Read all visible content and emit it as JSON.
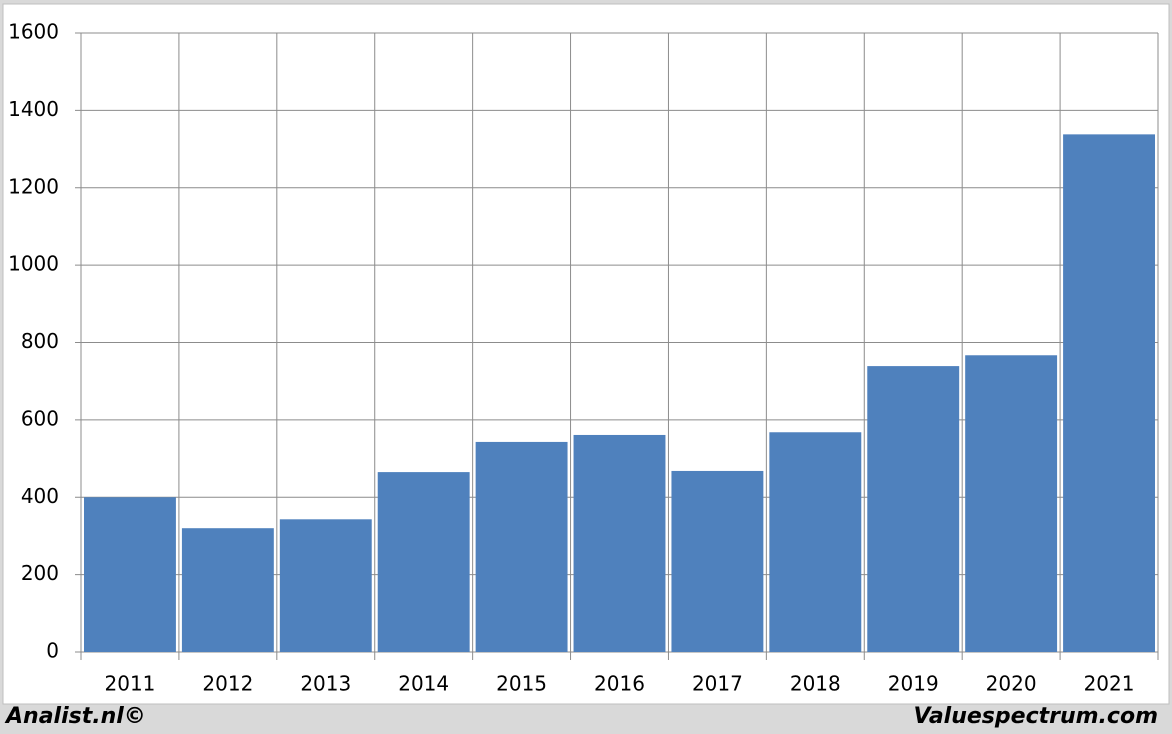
{
  "chart_data": {
    "type": "bar",
    "categories": [
      "2011",
      "2012",
      "2013",
      "2014",
      "2015",
      "2016",
      "2017",
      "2018",
      "2019",
      "2020",
      "2021"
    ],
    "values": [
      400,
      320,
      343,
      465,
      543,
      561,
      468,
      568,
      739,
      767,
      1338
    ],
    "color": "#4f81bd",
    "ylim": [
      0,
      1600
    ],
    "yticks": [
      0,
      200,
      400,
      600,
      800,
      1000,
      1200,
      1400,
      1600
    ],
    "grid": true,
    "annotations": [
      "Analist.nl©",
      "Valuespectrum.com"
    ]
  }
}
